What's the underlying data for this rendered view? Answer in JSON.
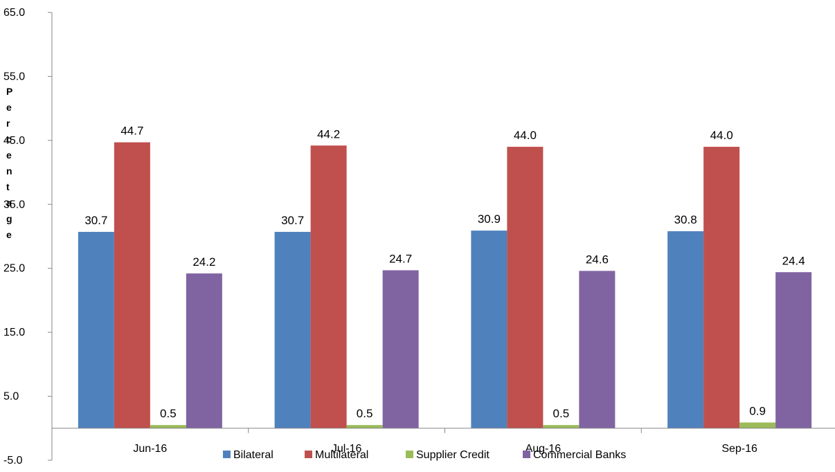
{
  "chart_data": {
    "type": "bar",
    "title": "",
    "xlabel": "",
    "ylabel": "Percentage",
    "ylim": [
      -5,
      65
    ],
    "yticks": [
      "65.0",
      "55.0",
      "45.0",
      "35.0",
      "25.0",
      "15.0",
      "5.0",
      "-5.0"
    ],
    "categories": [
      "Jun-16",
      "Jul-16",
      "Aug-16",
      "Sep-16"
    ],
    "series": [
      {
        "name": "Bilateral",
        "color": "#4F81BD",
        "values": [
          30.7,
          30.7,
          30.9,
          30.8
        ],
        "labels": [
          "30.7",
          "30.7",
          "30.9",
          "30.8"
        ]
      },
      {
        "name": "Multilateral",
        "color": "#C0504D",
        "values": [
          44.7,
          44.2,
          44.0,
          44.0
        ],
        "labels": [
          "44.7",
          "44.2",
          "44.0",
          "44.0"
        ]
      },
      {
        "name": "Supplier Credit",
        "color": "#9BBB59",
        "values": [
          0.5,
          0.5,
          0.5,
          0.9
        ],
        "labels": [
          "0.5",
          "0.5",
          "0.5",
          "0.9"
        ]
      },
      {
        "name": "Commercial Banks",
        "color": "#8064A2",
        "values": [
          24.2,
          24.7,
          24.6,
          24.4
        ],
        "labels": [
          "24.2",
          "24.7",
          "24.6",
          "24.4"
        ]
      }
    ],
    "legend_position": "bottom",
    "grid": false
  }
}
